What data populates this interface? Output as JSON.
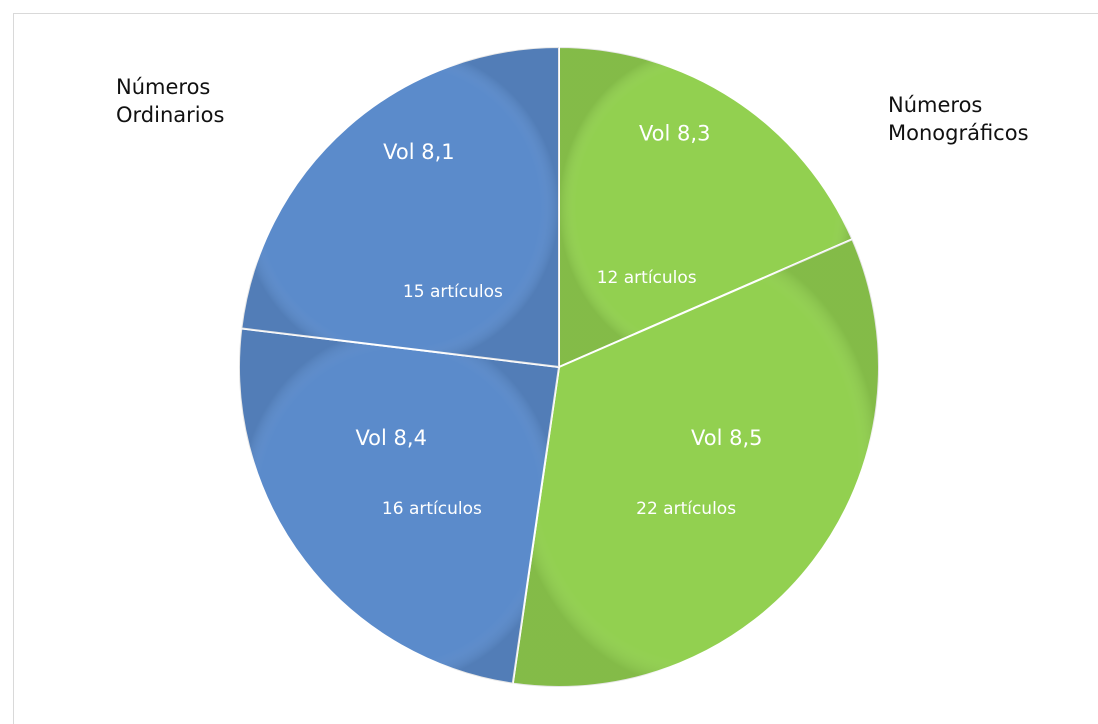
{
  "chart_data": {
    "type": "pie",
    "title": "",
    "groups": [
      {
        "label_lines": [
          "Números",
          "Ordinarios"
        ],
        "color": "#5B8BCB"
      },
      {
        "label_lines": [
          "Números",
          "Monográficos"
        ],
        "color": "#92D050"
      }
    ],
    "slices": [
      {
        "label": "Vol 8,3",
        "value": 12,
        "value_label": "12 artículos",
        "group": 1
      },
      {
        "label": "Vol 8,5",
        "value": 22,
        "value_label": "22 artículos",
        "group": 1
      },
      {
        "label": "Vol 8,4",
        "value": 16,
        "value_label": "16 artículos",
        "group": 0
      },
      {
        "label": "Vol 8,1",
        "value": 15,
        "value_label": "15 artículos",
        "group": 0
      }
    ]
  }
}
